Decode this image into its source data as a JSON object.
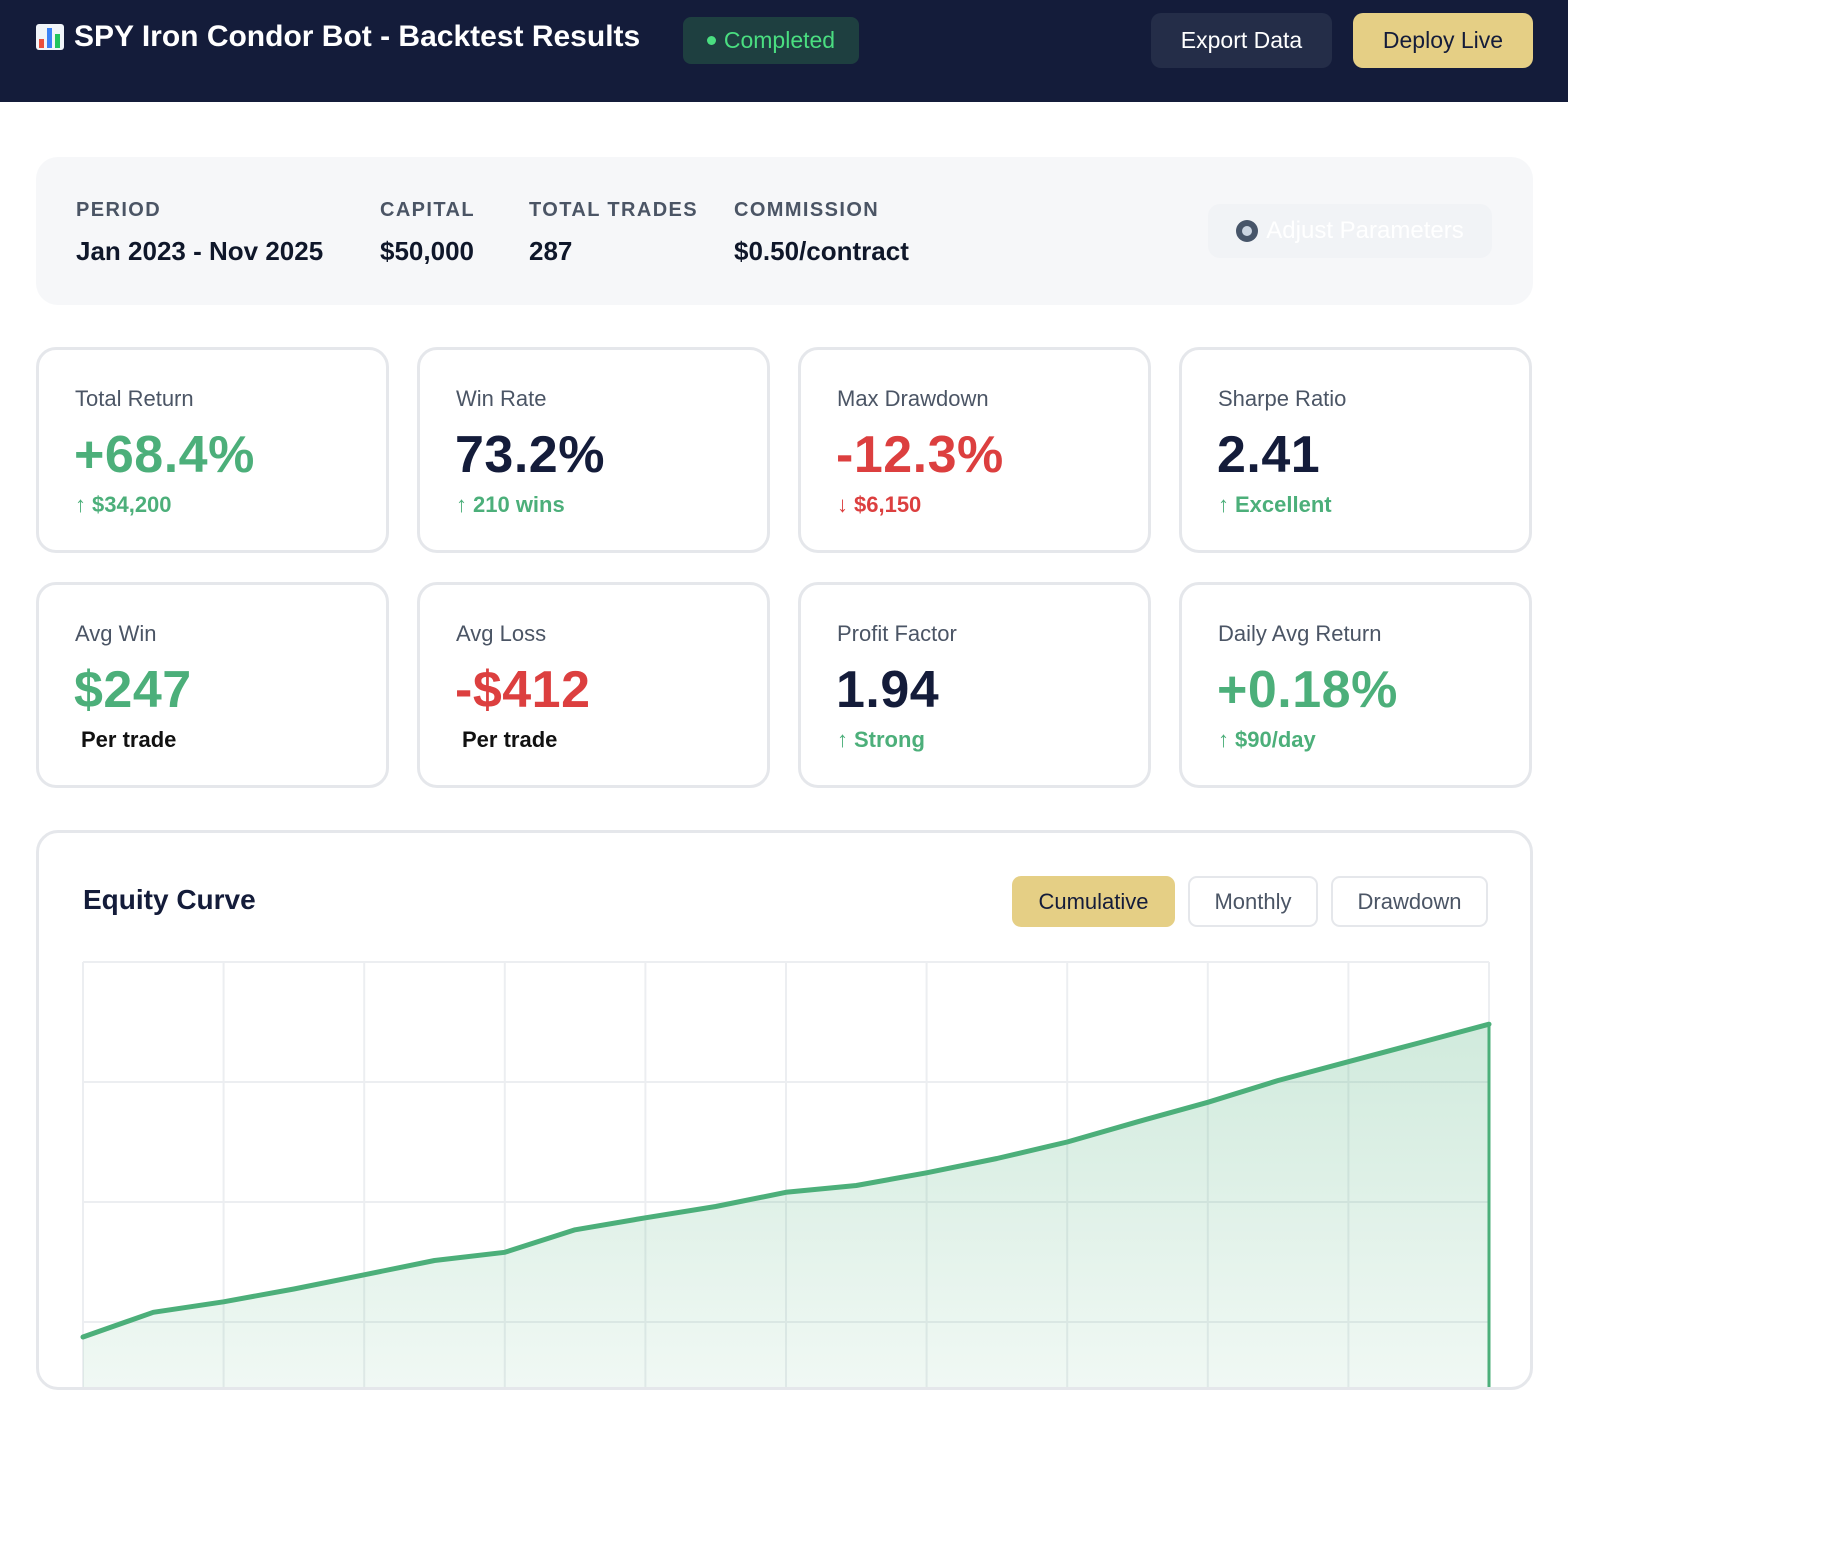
{
  "header": {
    "title": "SPY Iron Condor Bot - Backtest Results",
    "title_icon": "bar-chart-icon",
    "status": "Completed",
    "export_label": "Export Data",
    "deploy_label": "Deploy Live",
    "colors": {
      "bar_bg": "#141c3a",
      "accent": "#e5cf85",
      "status": "#4ade80"
    }
  },
  "config": {
    "period_label": "PERIOD",
    "period_value": "Jan 2023 - Nov 2025",
    "capital_label": "CAPITAL",
    "capital_value": "$50,000",
    "trades_label": "TOTAL TRADES",
    "trades_value": "287",
    "commission_label": "COMMISSION",
    "commission_value": "$0.50/contract",
    "adjust_label": "Adjust Parameters",
    "adjust_icon": "gear-icon"
  },
  "metrics": [
    {
      "label": "Total Return",
      "value": "+68.4%",
      "sub": "$34,200",
      "arrow": "↑",
      "tone": "green",
      "sub_tone": "green"
    },
    {
      "label": "Win Rate",
      "value": "73.2%",
      "sub": "210 wins",
      "arrow": "↑",
      "tone": "dark",
      "sub_tone": "green"
    },
    {
      "label": "Max Drawdown",
      "value": "-12.3%",
      "sub": "$6,150",
      "arrow": "↓",
      "tone": "red",
      "sub_tone": "red"
    },
    {
      "label": "Sharpe Ratio",
      "value": "2.41",
      "sub": "Excellent",
      "arrow": "↑",
      "tone": "dark",
      "sub_tone": "green"
    },
    {
      "label": "Avg Win",
      "value": "$247",
      "sub": "Per trade",
      "arrow": "",
      "tone": "green",
      "sub_tone": "black"
    },
    {
      "label": "Avg Loss",
      "value": "-$412",
      "sub": "Per trade",
      "arrow": "",
      "tone": "red",
      "sub_tone": "black"
    },
    {
      "label": "Profit Factor",
      "value": "1.94",
      "sub": "Strong",
      "arrow": "↑",
      "tone": "dark",
      "sub_tone": "green"
    },
    {
      "label": "Daily Avg Return",
      "value": "+0.18%",
      "sub": "$90/day",
      "arrow": "↑",
      "tone": "green",
      "sub_tone": "green"
    }
  ],
  "equity": {
    "title": "Equity Curve",
    "tabs": [
      {
        "label": "Cumulative",
        "active": true
      },
      {
        "label": "Monthly",
        "active": false
      },
      {
        "label": "Drawdown",
        "active": false
      }
    ]
  },
  "chart_data": {
    "type": "area",
    "title": "Equity Curve",
    "xlabel": "",
    "ylabel": "",
    "x": [
      0,
      1,
      2,
      3,
      4,
      5,
      6,
      7,
      8,
      9,
      10,
      11,
      12,
      13,
      14,
      15,
      16,
      17,
      18,
      19,
      20
    ],
    "values": [
      0,
      3.3,
      4.7,
      6.4,
      8.3,
      10.2,
      11.3,
      14.3,
      15.9,
      17.4,
      19.3,
      20.2,
      21.9,
      23.8,
      26.0,
      28.7,
      31.3,
      34.2,
      36.7,
      39.2,
      41.7
    ],
    "ylim": [
      0,
      50
    ],
    "grid": true,
    "line_color": "#4caf7a",
    "fill_color": "#4caf7a"
  }
}
